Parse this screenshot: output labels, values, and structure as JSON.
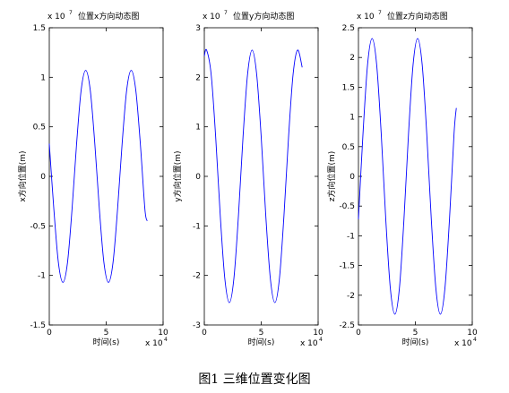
{
  "chart_data": [
    {
      "type": "line",
      "title": "位置x方向动态图",
      "xlabel": "时间(s)",
      "ylabel": "x方向位置(m)",
      "y_multiplier": "x 10",
      "y_exponent": "7",
      "x_multiplier": "x 10",
      "x_exponent": "4",
      "xlim": [
        0,
        10
      ],
      "xticks": [
        0,
        5,
        10
      ],
      "ylim": [
        -1.5,
        1.5
      ],
      "yticks": [
        -1.5,
        -1,
        -0.5,
        0,
        0.5,
        1,
        1.5
      ],
      "x": [
        0,
        0.4,
        0.8,
        1.2,
        1.6,
        2.0,
        2.4,
        2.8,
        3.2,
        3.6,
        4.0,
        4.4,
        4.8,
        5.2,
        5.6,
        6.0,
        6.4,
        6.8,
        7.2,
        7.6,
        8.0,
        8.4,
        8.6
      ],
      "series": [
        {
          "color": "#0000ff",
          "values": [
            0.33,
            -0.33,
            -0.87,
            -1.07,
            -0.87,
            -0.33,
            0.33,
            0.87,
            1.07,
            0.87,
            0.33,
            -0.33,
            -0.87,
            -1.07,
            -0.87,
            -0.33,
            0.33,
            0.87,
            1.07,
            0.87,
            0.33,
            -0.33,
            -0.45
          ]
        }
      ]
    },
    {
      "type": "line",
      "title": "位置y方向动态图",
      "xlabel": "时间(s)",
      "ylabel": "y方向位置(m)",
      "y_multiplier": "x 10",
      "y_exponent": "7",
      "x_multiplier": "x 10",
      "x_exponent": "4",
      "xlim": [
        0,
        10
      ],
      "xticks": [
        0,
        5,
        10
      ],
      "ylim": [
        -3,
        3
      ],
      "yticks": [
        -3,
        -2,
        -1,
        0,
        1,
        2,
        3
      ],
      "x": [
        0,
        0.2,
        0.6,
        1.0,
        1.4,
        1.8,
        2.2,
        2.6,
        3.0,
        3.4,
        3.8,
        4.2,
        4.6,
        5.0,
        5.4,
        5.8,
        6.2,
        6.6,
        7.0,
        7.4,
        7.8,
        8.2,
        8.6
      ],
      "series": [
        {
          "color": "#0000ff",
          "values": [
            2.43,
            2.55,
            2.06,
            0.79,
            -0.79,
            -2.06,
            -2.55,
            -2.06,
            -0.79,
            0.79,
            2.06,
            2.55,
            2.06,
            0.79,
            -0.79,
            -2.06,
            -2.55,
            -2.06,
            -0.79,
            0.79,
            2.06,
            2.55,
            2.2
          ]
        }
      ]
    },
    {
      "type": "line",
      "title": "位置z方向动态图",
      "xlabel": "时间(s)",
      "ylabel": "z方向位置(m)",
      "y_multiplier": "x 10",
      "y_exponent": "7",
      "x_multiplier": "x 10",
      "x_exponent": "4",
      "xlim": [
        0,
        10
      ],
      "xticks": [
        0,
        5,
        10
      ],
      "ylim": [
        -2.5,
        2.5
      ],
      "yticks": [
        -2.5,
        -2,
        -1.5,
        -1,
        -0.5,
        0,
        0.5,
        1,
        1.5,
        2,
        2.5
      ],
      "x": [
        0,
        0.4,
        0.8,
        1.2,
        1.6,
        2.0,
        2.4,
        2.8,
        3.2,
        3.6,
        4.0,
        4.4,
        4.8,
        5.2,
        5.6,
        6.0,
        6.4,
        6.8,
        7.2,
        7.6,
        8.0,
        8.4,
        8.6
      ],
      "series": [
        {
          "color": "#0000ff",
          "values": [
            -0.72,
            0.72,
            1.88,
            2.32,
            1.88,
            0.72,
            -0.72,
            -1.88,
            -2.32,
            -1.88,
            -0.72,
            0.72,
            1.88,
            2.32,
            1.88,
            0.72,
            -0.72,
            -1.88,
            -2.32,
            -1.88,
            -0.72,
            0.72,
            1.15
          ]
        }
      ]
    }
  ],
  "caption": "图1 三维位置变化图"
}
